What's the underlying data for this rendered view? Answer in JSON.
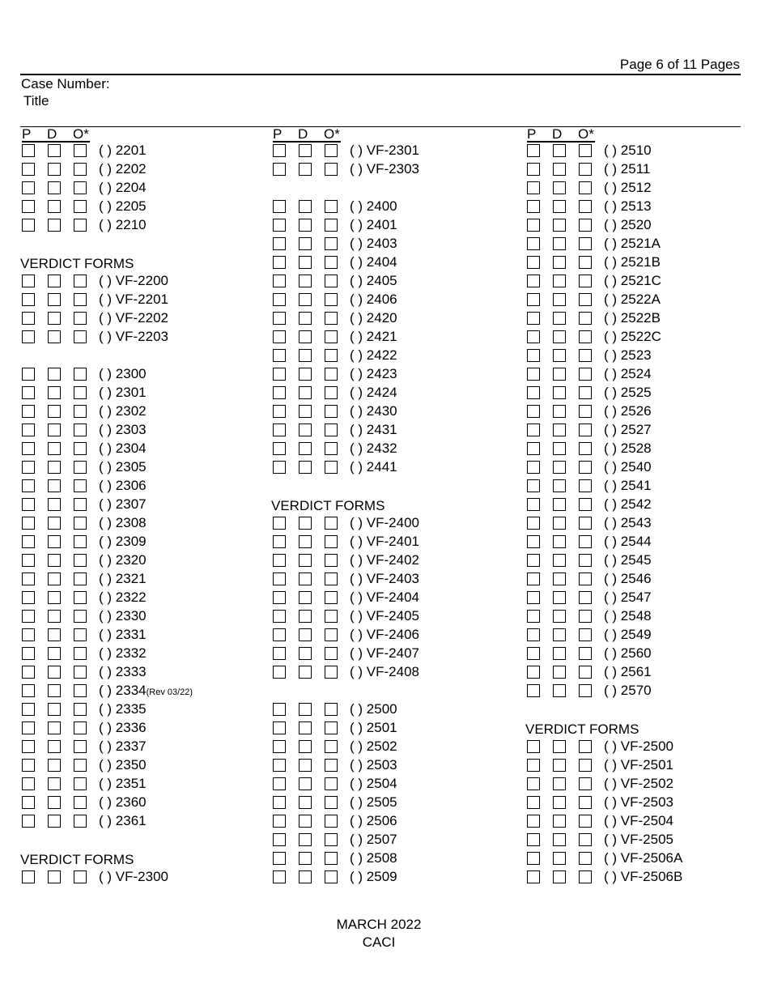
{
  "header": {
    "page": "Page 6 of 11 Pages",
    "case_number": "Case Number:",
    "title": "Title"
  },
  "column_header": {
    "p": "P",
    "d": "D",
    "o": "O*"
  },
  "columns": [
    {
      "items": [
        {
          "t": "row",
          "label": "2201"
        },
        {
          "t": "row",
          "label": "2202"
        },
        {
          "t": "row",
          "label": "2204"
        },
        {
          "t": "row",
          "label": "2205"
        },
        {
          "t": "row",
          "label": "2210"
        },
        {
          "t": "blank"
        },
        {
          "t": "heading",
          "label": "VERDICT FORMS"
        },
        {
          "t": "row",
          "label": "VF-2200"
        },
        {
          "t": "row",
          "label": "VF-2201"
        },
        {
          "t": "row",
          "label": "VF-2202"
        },
        {
          "t": "row",
          "label": "VF-2203"
        },
        {
          "t": "blank"
        },
        {
          "t": "row",
          "label": "2300"
        },
        {
          "t": "row",
          "label": "2301"
        },
        {
          "t": "row",
          "label": "2302"
        },
        {
          "t": "row",
          "label": "2303"
        },
        {
          "t": "row",
          "label": "2304"
        },
        {
          "t": "row",
          "label": "2305"
        },
        {
          "t": "row",
          "label": "2306"
        },
        {
          "t": "row",
          "label": "2307"
        },
        {
          "t": "row",
          "label": "2308"
        },
        {
          "t": "row",
          "label": "2309"
        },
        {
          "t": "row",
          "label": "2320"
        },
        {
          "t": "row",
          "label": "2321"
        },
        {
          "t": "row",
          "label": "2322"
        },
        {
          "t": "row",
          "label": "2330"
        },
        {
          "t": "row",
          "label": "2331"
        },
        {
          "t": "row",
          "label": "2332"
        },
        {
          "t": "row",
          "label": "2333"
        },
        {
          "t": "row",
          "label": "2334",
          "note": "(Rev 03/22)"
        },
        {
          "t": "row",
          "label": "2335"
        },
        {
          "t": "row",
          "label": "2336"
        },
        {
          "t": "row",
          "label": "2337"
        },
        {
          "t": "row",
          "label": "2350"
        },
        {
          "t": "row",
          "label": "2351"
        },
        {
          "t": "row",
          "label": "2360"
        },
        {
          "t": "row",
          "label": "2361"
        },
        {
          "t": "blank"
        },
        {
          "t": "heading",
          "label": "VERDICT FORMS"
        },
        {
          "t": "row",
          "label": "VF-2300"
        }
      ]
    },
    {
      "items": [
        {
          "t": "row",
          "label": "VF-2301"
        },
        {
          "t": "row",
          "label": "VF-2303"
        },
        {
          "t": "blank"
        },
        {
          "t": "row",
          "label": "2400"
        },
        {
          "t": "row",
          "label": "2401"
        },
        {
          "t": "row",
          "label": "2403"
        },
        {
          "t": "row",
          "label": "2404"
        },
        {
          "t": "row",
          "label": "2405"
        },
        {
          "t": "row",
          "label": "2406"
        },
        {
          "t": "row",
          "label": "2420"
        },
        {
          "t": "row",
          "label": "2421"
        },
        {
          "t": "row",
          "label": "2422"
        },
        {
          "t": "row",
          "label": "2423"
        },
        {
          "t": "row",
          "label": "2424"
        },
        {
          "t": "row",
          "label": "2430"
        },
        {
          "t": "row",
          "label": "2431"
        },
        {
          "t": "row",
          "label": "2432"
        },
        {
          "t": "row",
          "label": "2441"
        },
        {
          "t": "blank"
        },
        {
          "t": "heading",
          "label": "VERDICT FORMS"
        },
        {
          "t": "row",
          "label": "VF-2400"
        },
        {
          "t": "row",
          "label": "VF-2401"
        },
        {
          "t": "row",
          "label": "VF-2402"
        },
        {
          "t": "row",
          "label": "VF-2403"
        },
        {
          "t": "row",
          "label": "VF-2404"
        },
        {
          "t": "row",
          "label": "VF-2405"
        },
        {
          "t": "row",
          "label": "VF-2406"
        },
        {
          "t": "row",
          "label": "VF-2407"
        },
        {
          "t": "row",
          "label": "VF-2408"
        },
        {
          "t": "blank"
        },
        {
          "t": "row",
          "label": "2500"
        },
        {
          "t": "row",
          "label": "2501"
        },
        {
          "t": "row",
          "label": "2502"
        },
        {
          "t": "row",
          "label": "2503"
        },
        {
          "t": "row",
          "label": "2504"
        },
        {
          "t": "row",
          "label": "2505"
        },
        {
          "t": "row",
          "label": "2506"
        },
        {
          "t": "row",
          "label": "2507"
        },
        {
          "t": "row",
          "label": "2508"
        },
        {
          "t": "row",
          "label": "2509"
        }
      ]
    },
    {
      "items": [
        {
          "t": "row",
          "label": "2510"
        },
        {
          "t": "row",
          "label": "2511"
        },
        {
          "t": "row",
          "label": "2512"
        },
        {
          "t": "row",
          "label": "2513"
        },
        {
          "t": "row",
          "label": "2520"
        },
        {
          "t": "row",
          "label": "2521A"
        },
        {
          "t": "row",
          "label": "2521B"
        },
        {
          "t": "row",
          "label": "2521C"
        },
        {
          "t": "row",
          "label": "2522A"
        },
        {
          "t": "row",
          "label": "2522B"
        },
        {
          "t": "row",
          "label": "2522C"
        },
        {
          "t": "row",
          "label": "2523"
        },
        {
          "t": "row",
          "label": "2524"
        },
        {
          "t": "row",
          "label": "2525"
        },
        {
          "t": "row",
          "label": "2526"
        },
        {
          "t": "row",
          "label": "2527"
        },
        {
          "t": "row",
          "label": "2528"
        },
        {
          "t": "row",
          "label": "2540"
        },
        {
          "t": "row",
          "label": "2541"
        },
        {
          "t": "row",
          "label": "2542"
        },
        {
          "t": "row",
          "label": "2543"
        },
        {
          "t": "row",
          "label": "2544"
        },
        {
          "t": "row",
          "label": "2545"
        },
        {
          "t": "row",
          "label": "2546"
        },
        {
          "t": "row",
          "label": "2547"
        },
        {
          "t": "row",
          "label": "2548"
        },
        {
          "t": "row",
          "label": "2549"
        },
        {
          "t": "row",
          "label": "2560"
        },
        {
          "t": "row",
          "label": "2561"
        },
        {
          "t": "row",
          "label": "2570"
        },
        {
          "t": "blank"
        },
        {
          "t": "heading",
          "label": "VERDICT FORMS"
        },
        {
          "t": "row",
          "label": "VF-2500"
        },
        {
          "t": "row",
          "label": "VF-2501"
        },
        {
          "t": "row",
          "label": "VF-2502"
        },
        {
          "t": "row",
          "label": "VF-2503"
        },
        {
          "t": "row",
          "label": "VF-2504"
        },
        {
          "t": "row",
          "label": "VF-2505"
        },
        {
          "t": "row",
          "label": "VF-2506A"
        },
        {
          "t": "row",
          "label": "VF-2506B"
        }
      ]
    }
  ],
  "paren_marker": "( )",
  "footer": {
    "line1": "MARCH 2022",
    "line2": "CACI"
  }
}
